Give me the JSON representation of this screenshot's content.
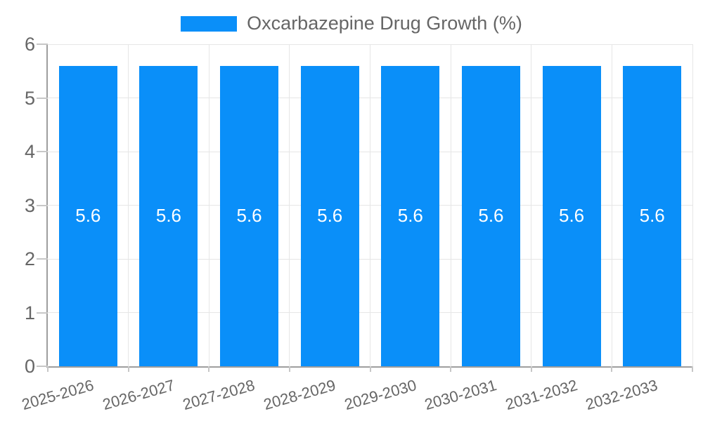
{
  "chart_data": {
    "type": "bar",
    "title": "",
    "legend": {
      "position": "top",
      "label": "Oxcarbazepine Drug Growth (%)"
    },
    "categories": [
      "2025-2026",
      "2026-2027",
      "2027-2028",
      "2028-2029",
      "2029-2030",
      "2030-2031",
      "2031-2032",
      "2032-2033"
    ],
    "series": [
      {
        "name": "Oxcarbazepine Drug Growth (%)",
        "values": [
          5.6,
          5.6,
          5.6,
          5.6,
          5.6,
          5.6,
          5.6,
          5.6
        ],
        "value_labels": [
          "5.6",
          "5.6",
          "5.6",
          "5.6",
          "5.6",
          "5.6",
          "5.6",
          "5.6"
        ],
        "color": "#0A8FF9"
      }
    ],
    "xlabel": "",
    "ylabel": "",
    "ylim": [
      0,
      6
    ],
    "yticks": [
      0,
      1,
      2,
      3,
      4,
      5,
      6
    ],
    "grid": true
  },
  "colors": {
    "bar": "#0A8FF9",
    "grid": "#E6E6E6",
    "axis": "#9E9E9E",
    "tick": "#C7C7C7",
    "tick_label": "#666666",
    "legend_label": "#666666",
    "value_label": "#FFFFFF",
    "background": "#FFFFFF"
  }
}
